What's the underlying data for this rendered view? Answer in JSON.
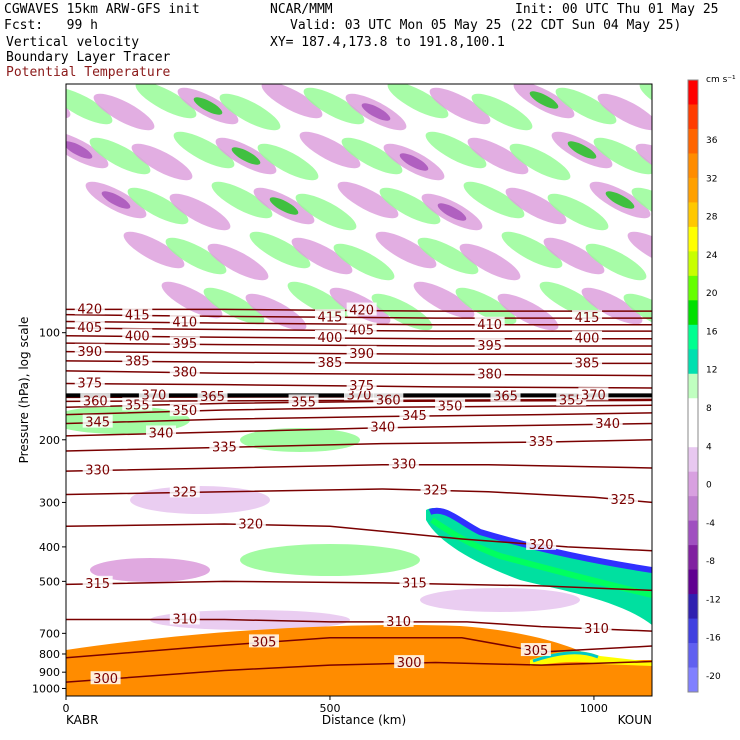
{
  "header": {
    "title": "CGWAVES 15km ARW-GFS init",
    "center": "NCAR/MMM",
    "init": "Init: 00 UTC Thu 01 May 25",
    "fcst": "Fcst:   99 h",
    "valid": "Valid: 03 UTC Mon 05 May 25 (22 CDT Sun 04 May 25)",
    "xy": "XY= 187.4,173.8 to 191.8,100.1",
    "field1": "Vertical velocity",
    "field2": "Boundary Layer Tracer",
    "field3": "Potential Temperature"
  },
  "colors": {
    "theta_line": "#7a0000",
    "tracer": "#ff8c00",
    "negative": "#dda0dd",
    "positive": "#98fb98"
  },
  "chart_data": {
    "type": "heatmap",
    "xlabel": "Distance (km)",
    "ylabel": "Pressure (hPa), log scale",
    "xlim": [
      0,
      1110
    ],
    "ylim": [
      1050,
      20
    ],
    "y_scale": "log",
    "x_ticks": [
      "0",
      "500",
      "1000"
    ],
    "y_ticks": [
      "100",
      "200",
      "300",
      "400",
      "500",
      "700",
      "800",
      "900",
      "1000"
    ],
    "x_endpoints": [
      "KABR",
      "KOUN"
    ],
    "colorbar": {
      "unit": "cm s⁻¹",
      "labels": [
        "36",
        "32",
        "28",
        "24",
        "20",
        "16",
        "12",
        "8",
        "4",
        "0",
        "-4",
        "-8",
        "-12",
        "-16",
        "-20"
      ],
      "colors": [
        "#ff0000",
        "#ff3c00",
        "#ff6400",
        "#ff8c00",
        "#ffa000",
        "#ffc800",
        "#ffff00",
        "#c8ff00",
        "#64ff00",
        "#00e000",
        "#00ff90",
        "#00e0b0",
        "#c0ffc0",
        "#ffffff",
        "#ffffff",
        "#e8c8f0",
        "#d8a0e0",
        "#c080d0",
        "#a050c0",
        "#8020a0",
        "#600090",
        "#3020b0",
        "#4040e0",
        "#6060f0",
        "#8080ff"
      ]
    },
    "theta_contours": [
      {
        "value": 300,
        "label": "300",
        "points": [
          [
            0,
            960
          ],
          [
            300,
            890
          ],
          [
            500,
            860
          ],
          [
            700,
            845
          ],
          [
            900,
            860
          ],
          [
            1110,
            840
          ]
        ]
      },
      {
        "value": 305,
        "label": "305",
        "points": [
          [
            0,
            820
          ],
          [
            250,
            765
          ],
          [
            500,
            720
          ],
          [
            750,
            720
          ],
          [
            880,
            780
          ],
          [
            900,
            790
          ],
          [
            1110,
            760
          ]
        ]
      },
      {
        "value": 310,
        "label": "310",
        "points": [
          [
            0,
            640
          ],
          [
            300,
            640
          ],
          [
            500,
            650
          ],
          [
            760,
            650
          ],
          [
            900,
            670
          ],
          [
            1110,
            690
          ]
        ]
      },
      {
        "value": 315,
        "label": "315",
        "points": [
          [
            0,
            510
          ],
          [
            300,
            500
          ],
          [
            600,
            505
          ],
          [
            900,
            515
          ],
          [
            1110,
            530
          ]
        ]
      },
      {
        "value": 320,
        "label": "320",
        "points": [
          [
            0,
            350
          ],
          [
            300,
            345
          ],
          [
            500,
            350
          ],
          [
            750,
            380
          ],
          [
            950,
            400
          ],
          [
            1110,
            410
          ]
        ]
      },
      {
        "value": 325,
        "label": "325",
        "points": [
          [
            0,
            285
          ],
          [
            300,
            280
          ],
          [
            600,
            275
          ],
          [
            800,
            280
          ],
          [
            1000,
            290
          ],
          [
            1110,
            300
          ]
        ]
      },
      {
        "value": 330,
        "label": "330",
        "points": [
          [
            0,
            245
          ],
          [
            300,
            240
          ],
          [
            600,
            235
          ],
          [
            800,
            235
          ],
          [
            1110,
            240
          ]
        ]
      },
      {
        "value": 335,
        "label": "335",
        "points": [
          [
            0,
            215
          ],
          [
            300,
            210
          ],
          [
            600,
            205
          ],
          [
            900,
            203
          ],
          [
            1110,
            200
          ]
        ]
      },
      {
        "value": 340,
        "label": "340",
        "points": [
          [
            0,
            195
          ],
          [
            300,
            190
          ],
          [
            600,
            185
          ],
          [
            900,
            182
          ],
          [
            1110,
            180
          ]
        ]
      },
      {
        "value": 345,
        "label": "345",
        "points": [
          [
            0,
            180
          ],
          [
            300,
            175
          ],
          [
            600,
            172
          ],
          [
            900,
            170
          ],
          [
            1110,
            168
          ]
        ]
      },
      {
        "value": 350,
        "label": "350",
        "points": [
          [
            0,
            170
          ],
          [
            300,
            165
          ],
          [
            600,
            162
          ],
          [
            1110,
            160
          ]
        ]
      },
      {
        "value": 355,
        "label": "355",
        "points": [
          [
            0,
            162
          ],
          [
            300,
            158
          ],
          [
            600,
            156
          ],
          [
            1110,
            155
          ]
        ]
      },
      {
        "value": 360,
        "label": "360",
        "points": [
          [
            0,
            156
          ],
          [
            1110,
            154
          ]
        ]
      },
      {
        "value": 365,
        "label": "365",
        "points": [
          [
            0,
            152
          ],
          [
            1110,
            151
          ]
        ]
      },
      {
        "value": 370,
        "label": "370",
        "points": [
          [
            0,
            150
          ],
          [
            1110,
            150
          ]
        ]
      },
      {
        "value": 375,
        "label": "375",
        "points": [
          [
            0,
            139
          ],
          [
            300,
            140
          ],
          [
            700,
            142
          ],
          [
            1110,
            143
          ]
        ]
      },
      {
        "value": 380,
        "label": "380",
        "points": [
          [
            0,
            128
          ],
          [
            300,
            130
          ],
          [
            700,
            131
          ],
          [
            1110,
            132
          ]
        ]
      },
      {
        "value": 385,
        "label": "385",
        "points": [
          [
            0,
            120
          ],
          [
            300,
            121
          ],
          [
            700,
            122
          ],
          [
            1110,
            122
          ]
        ]
      },
      {
        "value": 390,
        "label": "390",
        "points": [
          [
            0,
            113
          ],
          [
            300,
            114
          ],
          [
            700,
            115
          ],
          [
            1110,
            115
          ]
        ]
      },
      {
        "value": 395,
        "label": "395",
        "points": [
          [
            0,
            107
          ],
          [
            300,
            108
          ],
          [
            700,
            109
          ],
          [
            1110,
            109
          ]
        ]
      },
      {
        "value": 400,
        "label": "400",
        "points": [
          [
            0,
            102
          ],
          [
            300,
            103
          ],
          [
            700,
            104
          ],
          [
            1110,
            104
          ]
        ]
      },
      {
        "value": 405,
        "label": "405",
        "points": [
          [
            0,
            97
          ],
          [
            300,
            98
          ],
          [
            700,
            99
          ],
          [
            1110,
            99
          ]
        ]
      },
      {
        "value": 410,
        "label": "410",
        "points": [
          [
            0,
            93
          ],
          [
            300,
            94
          ],
          [
            700,
            95
          ],
          [
            1110,
            95
          ]
        ]
      },
      {
        "value": 415,
        "label": "415",
        "points": [
          [
            0,
            89
          ],
          [
            300,
            90
          ],
          [
            700,
            91
          ],
          [
            1110,
            91
          ]
        ]
      },
      {
        "value": 420,
        "label": "420",
        "points": [
          [
            0,
            86
          ],
          [
            300,
            86
          ],
          [
            700,
            87
          ],
          [
            1110,
            87
          ]
        ]
      }
    ]
  }
}
